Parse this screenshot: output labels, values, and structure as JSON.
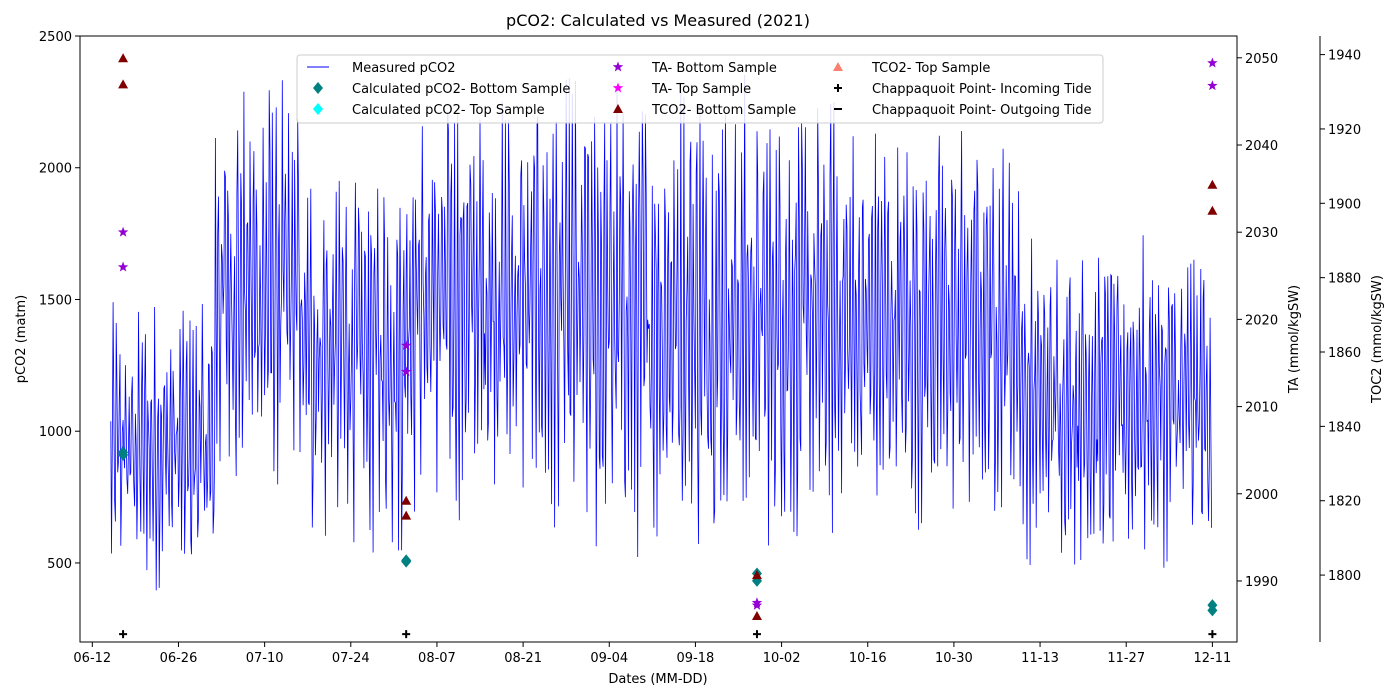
{
  "chart_data": {
    "type": "line",
    "title": "pCO2: Calculated vs Measured (2021)",
    "xlabel": "Dates (MM-DD)",
    "ylabel_left": "pCO2 (matm)",
    "ylabel_right1": "TA (mmol/kgSW)",
    "ylabel_right2": "TOC2 (mmol/kgSW)",
    "x_range": [
      "2021-06-10",
      "2021-12-15"
    ],
    "xticks": [
      "06-12",
      "06-26",
      "07-10",
      "07-24",
      "08-07",
      "08-21",
      "09-04",
      "09-18",
      "10-02",
      "10-16",
      "10-30",
      "11-13",
      "11-27",
      "12-11"
    ],
    "ylim_left": [
      200,
      2500
    ],
    "yticks_left": [
      500,
      1000,
      1500,
      2000,
      2500
    ],
    "ylim_ta": [
      1983,
      2052.5
    ],
    "yticks_ta": [
      1990,
      2000,
      2010,
      2020,
      2030,
      2040,
      2050
    ],
    "ylim_tco2": [
      1782,
      1945
    ],
    "yticks_tco2": [
      1800,
      1820,
      1840,
      1860,
      1880,
      1900,
      1920,
      1940
    ],
    "legend": {
      "location": "upper center",
      "entries": [
        {
          "label": "Measured pCO2",
          "marker": "line",
          "color": "#0000ff"
        },
        {
          "label": "Calculated pCO2- Bottom Sample",
          "marker": "diamond",
          "color": "#008080"
        },
        {
          "label": "Calculated pCO2- Top Sample",
          "marker": "diamond",
          "color": "#00ffff"
        },
        {
          "label": "TA- Bottom Sample",
          "marker": "star",
          "color": "#9400d3"
        },
        {
          "label": "TA- Top Sample",
          "marker": "star",
          "color": "#ff00ff"
        },
        {
          "label": "TCO2- Bottom Sample",
          "marker": "triangle",
          "color": "#800000"
        },
        {
          "label": "TCO2- Top Sample",
          "marker": "triangle",
          "color": "#fa8072"
        },
        {
          "label": "Chappaquoit Point- Incoming Tide",
          "marker": "plus",
          "color": "#000000"
        },
        {
          "label": "Chappaquoit Point- Outgoing Tide",
          "marker": "hline",
          "color": "#000000"
        }
      ]
    },
    "series": [
      {
        "name": "Measured pCO2",
        "axis": "left",
        "color": "#0000ff",
        "sample_envelope": [
          {
            "start": "2021-06-15",
            "end": "2021-07-02",
            "low": 380,
            "high": 1500
          },
          {
            "start": "2021-07-02",
            "end": "2021-07-16",
            "low": 700,
            "high": 2380
          },
          {
            "start": "2021-07-16",
            "end": "2021-08-02",
            "low": 500,
            "high": 2100
          },
          {
            "start": "2021-08-02",
            "end": "2021-08-25",
            "low": 650,
            "high": 2350
          },
          {
            "start": "2021-08-25",
            "end": "2021-09-28",
            "low": 500,
            "high": 2380
          },
          {
            "start": "2021-09-28",
            "end": "2021-10-13",
            "low": 550,
            "high": 2300
          },
          {
            "start": "2021-10-13",
            "end": "2021-11-10",
            "low": 600,
            "high": 2200
          },
          {
            "start": "2021-11-10",
            "end": "2021-12-11",
            "low": 480,
            "high": 1750
          }
        ]
      },
      {
        "name": "Calculated pCO2- Bottom Sample",
        "axis": "left",
        "color": "#008080",
        "marker": "diamond",
        "points": [
          [
            "2021-06-17",
            910
          ],
          [
            "2021-06-17",
            920
          ],
          [
            "2021-08-02",
            505
          ],
          [
            "2021-08-02",
            510
          ],
          [
            "2021-09-28",
            432
          ],
          [
            "2021-09-28",
            460
          ],
          [
            "2021-12-11",
            320
          ],
          [
            "2021-12-11",
            340
          ]
        ]
      },
      {
        "name": "Calculated pCO2- Top Sample",
        "axis": "left",
        "color": "#00ffff",
        "marker": "diamond",
        "points": []
      },
      {
        "name": "TA- Bottom Sample",
        "axis": "ta",
        "color": "#9400d3",
        "marker": "star",
        "points": [
          [
            "2021-06-17",
            2030
          ],
          [
            "2021-06-17",
            2026
          ],
          [
            "2021-08-02",
            2017
          ],
          [
            "2021-08-02",
            2014
          ],
          [
            "2021-09-28",
            1987.5
          ],
          [
            "2021-09-28",
            1987.2
          ],
          [
            "2021-12-11",
            2049.4
          ],
          [
            "2021-12-11",
            2046.8
          ]
        ]
      },
      {
        "name": "TA- Top Sample",
        "axis": "ta",
        "color": "#ff00ff",
        "marker": "star",
        "points": []
      },
      {
        "name": "TCO2- Bottom Sample",
        "axis": "tco2",
        "color": "#800000",
        "marker": "triangle",
        "points": [
          [
            "2021-06-17",
            1939
          ],
          [
            "2021-06-17",
            1932
          ],
          [
            "2021-08-02",
            1820
          ],
          [
            "2021-08-02",
            1816
          ],
          [
            "2021-09-28",
            1800
          ],
          [
            "2021-09-28",
            1789
          ],
          [
            "2021-12-11",
            1905
          ],
          [
            "2021-12-11",
            1898
          ]
        ]
      },
      {
        "name": "TCO2- Top Sample",
        "axis": "tco2",
        "color": "#fa8072",
        "marker": "triangle",
        "points": []
      },
      {
        "name": "Chappaquoit Point- Incoming Tide",
        "axis": "left",
        "color": "#000000",
        "marker": "plus",
        "points": [
          [
            "2021-06-17",
            230
          ],
          [
            "2021-08-02",
            230
          ],
          [
            "2021-09-28",
            230
          ],
          [
            "2021-12-11",
            230
          ]
        ]
      },
      {
        "name": "Chappaquoit Point- Outgoing Tide",
        "axis": "left",
        "color": "#000000",
        "marker": "hline",
        "points": []
      }
    ]
  }
}
